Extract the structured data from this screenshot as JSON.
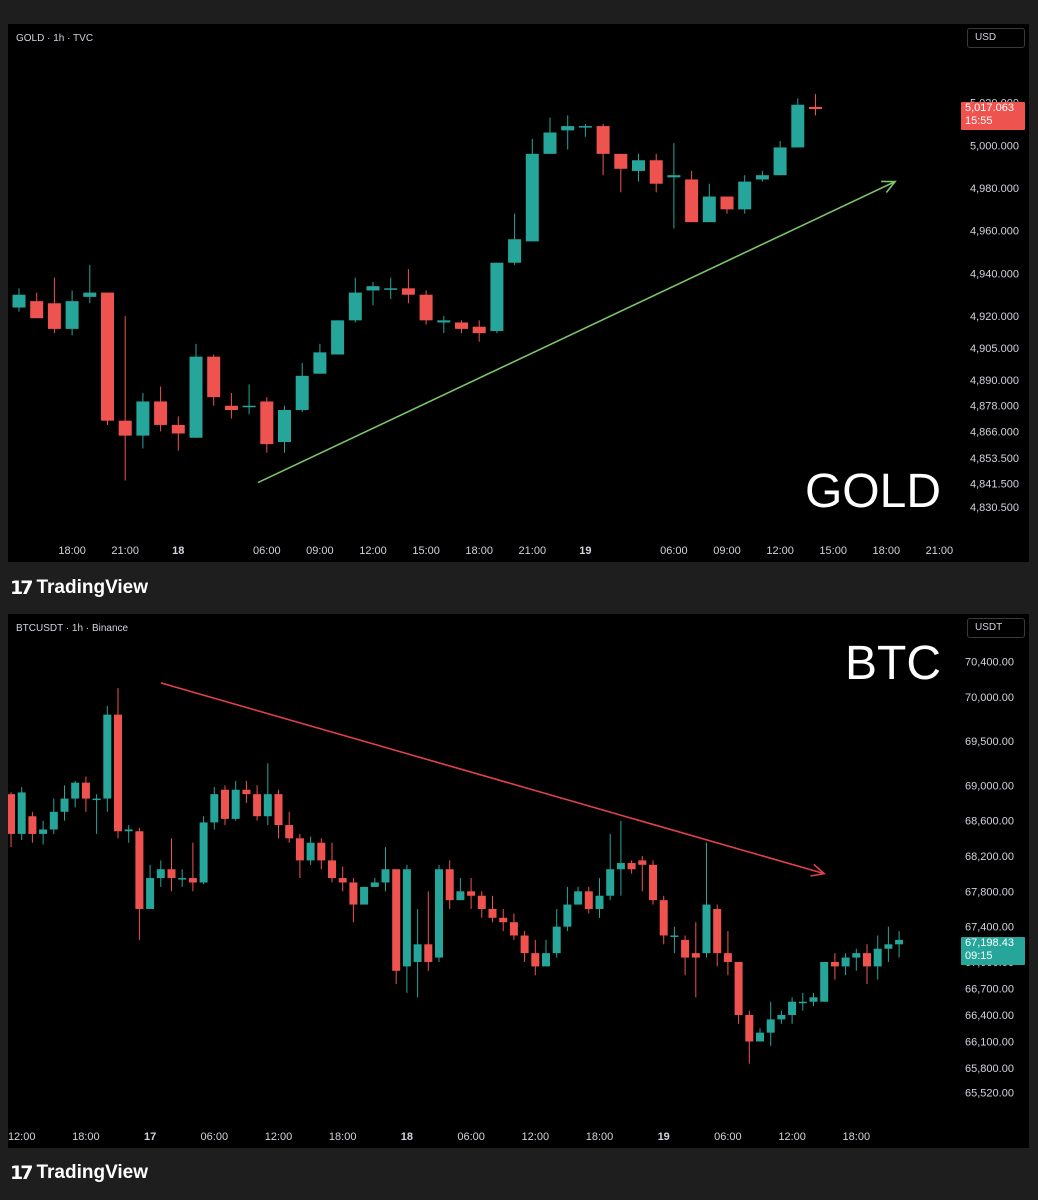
{
  "chart_data": [
    {
      "type": "candlestick",
      "symbol_label": "GOLD · 1h · TVC",
      "currency": "USD",
      "watermark": "GOLD",
      "current_price": "5,017.063",
      "countdown": "15:55",
      "ylim": [
        4824,
        5032
      ],
      "y_ticks": [
        "5,020.000",
        "5,000.000",
        "4,980.000",
        "4,960.000",
        "4,940.000",
        "4,920.000",
        "4,905.000",
        "4,890.000",
        "4,878.000",
        "4,866.000",
        "4,853.500",
        "4,841.500",
        "4,830.500"
      ],
      "x_ticks": [
        {
          "label": "18:00",
          "slot": 3
        },
        {
          "label": "21:00",
          "slot": 6
        },
        {
          "label": "18",
          "slot": 9,
          "bold": true
        },
        {
          "label": "06:00",
          "slot": 14
        },
        {
          "label": "09:00",
          "slot": 17
        },
        {
          "label": "12:00",
          "slot": 20
        },
        {
          "label": "15:00",
          "slot": 23
        },
        {
          "label": "18:00",
          "slot": 26
        },
        {
          "label": "21:00",
          "slot": 29
        },
        {
          "label": "19",
          "slot": 32,
          "bold": true
        },
        {
          "label": "06:00",
          "slot": 37
        },
        {
          "label": "09:00",
          "slot": 40
        },
        {
          "label": "12:00",
          "slot": 43
        },
        {
          "label": "15:00",
          "slot": 46
        },
        {
          "label": "18:00",
          "slot": 49
        },
        {
          "label": "21:00",
          "slot": 52
        }
      ],
      "trend_arrow": {
        "from": {
          "slot": 13.5,
          "price": 4842
        },
        "to": {
          "slot": 49.5,
          "price": 4983
        },
        "color": "#7cc46a"
      },
      "candles": [
        [
          4924,
          4930,
          4922,
          4933
        ],
        [
          4927,
          4919,
          4919,
          4931
        ],
        [
          4926,
          4914,
          4912,
          4938
        ],
        [
          4914,
          4927,
          4911,
          4932
        ],
        [
          4929,
          4931,
          4926,
          4944
        ],
        [
          4931,
          4871,
          4869,
          4931
        ],
        [
          4871,
          4864,
          4843,
          4920
        ],
        [
          4864,
          4880,
          4858,
          4884
        ],
        [
          4880,
          4869,
          4866,
          4887
        ],
        [
          4869,
          4865,
          4857,
          4873
        ],
        [
          4863,
          4901,
          4863,
          4907
        ],
        [
          4901,
          4882,
          4878,
          4902
        ],
        [
          4878,
          4876,
          4872,
          4884
        ],
        [
          4878,
          4878,
          4874,
          4888
        ],
        [
          4880,
          4860,
          4856,
          4882
        ],
        [
          4861,
          4876,
          4856,
          4878
        ],
        [
          4876,
          4892,
          4875,
          4898
        ],
        [
          4893,
          4903,
          4893,
          4907
        ],
        [
          4902,
          4918,
          4902,
          4918
        ],
        [
          4918,
          4931,
          4917,
          4938
        ],
        [
          4932,
          4934,
          4925,
          4936
        ],
        [
          4933,
          4933,
          4928,
          4938
        ],
        [
          4933,
          4930,
          4926,
          4942
        ],
        [
          4930,
          4918,
          4916,
          4932
        ],
        [
          4917,
          4918,
          4912,
          4920
        ],
        [
          4917,
          4914,
          4912,
          4918
        ],
        [
          4915,
          4912,
          4908,
          4918
        ],
        [
          4913,
          4945,
          4912,
          4945
        ],
        [
          4945,
          4956,
          4944,
          4968
        ],
        [
          4955,
          4996,
          4955,
          5003
        ],
        [
          4996,
          5006,
          4996,
          5013
        ],
        [
          5007,
          5009,
          4998,
          5014
        ],
        [
          5009,
          5009,
          5004,
          5010
        ],
        [
          5009,
          4996,
          4986,
          5010
        ],
        [
          4996,
          4989,
          4978,
          4996
        ],
        [
          4988,
          4993,
          4983,
          4996
        ],
        [
          4993,
          4982,
          4978,
          4996
        ],
        [
          4985,
          4986,
          4961,
          5001
        ],
        [
          4984,
          4964,
          4964,
          4988
        ],
        [
          4964,
          4976,
          4964,
          4982
        ],
        [
          4976,
          4970,
          4968,
          4976
        ],
        [
          4970,
          4983,
          4968,
          4986
        ],
        [
          4984,
          4986,
          4983,
          4988
        ],
        [
          4986,
          4999,
          4986,
          5002
        ],
        [
          4999,
          5019,
          4999,
          5022
        ],
        [
          5018,
          5017,
          5014,
          5024
        ]
      ]
    },
    {
      "type": "candlestick",
      "symbol_label": "BTCUSDT · 1h · Binance",
      "currency": "USDT",
      "watermark": "BTC",
      "current_price": "67,198.43",
      "countdown": "09:15",
      "ylim": [
        65460,
        70600
      ],
      "y_ticks": [
        "70,400.00",
        "70,000.00",
        "69,500.00",
        "69,000.00",
        "68,600.00",
        "68,200.00",
        "67,800.00",
        "67,400.00",
        "67,000.00",
        "66,700.00",
        "66,400.00",
        "66,100.00",
        "65,800.00",
        "65,520.00"
      ],
      "x_ticks": [
        {
          "label": "12:00",
          "slot": 1
        },
        {
          "label": "18:00",
          "slot": 7
        },
        {
          "label": "17",
          "slot": 13,
          "bold": true
        },
        {
          "label": "06:00",
          "slot": 19
        },
        {
          "label": "12:00",
          "slot": 25
        },
        {
          "label": "18:00",
          "slot": 31
        },
        {
          "label": "18",
          "slot": 37,
          "bold": true
        },
        {
          "label": "06:00",
          "slot": 43
        },
        {
          "label": "12:00",
          "slot": 49
        },
        {
          "label": "18:00",
          "slot": 55
        },
        {
          "label": "19",
          "slot": 61,
          "bold": true
        },
        {
          "label": "06:00",
          "slot": 67
        },
        {
          "label": "12:00",
          "slot": 73
        },
        {
          "label": "18:00",
          "slot": 79
        }
      ],
      "trend_arrow": {
        "from": {
          "slot": 14,
          "price": 70160
        },
        "to": {
          "slot": 76,
          "price": 68000
        },
        "color": "#e0414d"
      },
      "candles": [
        [
          68900,
          68450,
          68300,
          68920
        ],
        [
          68450,
          68920,
          68380,
          68980
        ],
        [
          68650,
          68450,
          68350,
          68700
        ],
        [
          68450,
          68500,
          68330,
          68600
        ],
        [
          68500,
          68700,
          68450,
          68850
        ],
        [
          68700,
          68850,
          68600,
          69000
        ],
        [
          68850,
          69030,
          68750,
          69050
        ],
        [
          69030,
          68850,
          68700,
          69100
        ],
        [
          68850,
          68850,
          68450,
          68900
        ],
        [
          68850,
          69800,
          68700,
          69900
        ],
        [
          69800,
          68480,
          68400,
          70100
        ],
        [
          68480,
          68500,
          68350,
          68550
        ],
        [
          68480,
          67600,
          67250,
          68520
        ],
        [
          67600,
          67950,
          67600,
          68100
        ],
        [
          67950,
          68050,
          67850,
          68150
        ],
        [
          68050,
          67950,
          67800,
          68400
        ],
        [
          67950,
          67950,
          67850,
          68050
        ],
        [
          67950,
          67900,
          67800,
          68350
        ],
        [
          67900,
          68580,
          67880,
          68650
        ],
        [
          68580,
          68900,
          68500,
          68980
        ],
        [
          68950,
          68620,
          68550,
          69000
        ],
        [
          68620,
          68950,
          68600,
          69050
        ],
        [
          68950,
          68900,
          68800,
          69050
        ],
        [
          68900,
          68650,
          68600,
          69000
        ],
        [
          68650,
          68900,
          68550,
          69250
        ],
        [
          68900,
          68550,
          68400,
          68950
        ],
        [
          68550,
          68400,
          68350,
          68700
        ],
        [
          68400,
          68150,
          67950,
          68450
        ],
        [
          68150,
          68350,
          68100,
          68420
        ],
        [
          68350,
          68150,
          68050,
          68400
        ],
        [
          68150,
          67950,
          67900,
          68350
        ],
        [
          67950,
          67900,
          67800,
          68080
        ],
        [
          67900,
          67650,
          67450,
          67950
        ],
        [
          67650,
          67850,
          67700,
          67850
        ],
        [
          67850,
          67900,
          67850,
          67950
        ],
        [
          67900,
          68050,
          67800,
          68300
        ],
        [
          68050,
          66900,
          66750,
          68050
        ],
        [
          66950,
          68050,
          66650,
          68100
        ],
        [
          67000,
          67200,
          66600,
          67600
        ],
        [
          67200,
          67000,
          66900,
          67800
        ],
        [
          67050,
          68050,
          67000,
          68100
        ],
        [
          68050,
          67700,
          67600,
          68150
        ],
        [
          67700,
          67800,
          67700,
          67950
        ],
        [
          67800,
          67750,
          67600,
          67950
        ],
        [
          67750,
          67600,
          67500,
          67800
        ],
        [
          67600,
          67500,
          67450,
          67750
        ],
        [
          67500,
          67450,
          67350,
          67600
        ],
        [
          67450,
          67300,
          67250,
          67550
        ],
        [
          67300,
          67100,
          67000,
          67350
        ],
        [
          67100,
          66950,
          66850,
          67250
        ],
        [
          66950,
          67100,
          67000,
          67250
        ],
        [
          67100,
          67400,
          67050,
          67600
        ],
        [
          67400,
          67650,
          67350,
          67850
        ],
        [
          67650,
          67800,
          67650,
          67850
        ],
        [
          67800,
          67600,
          67550,
          67850
        ],
        [
          67600,
          67750,
          67500,
          67950
        ],
        [
          67750,
          68050,
          67700,
          68450
        ],
        [
          68050,
          68120,
          67750,
          68600
        ],
        [
          68120,
          68050,
          68000,
          68150
        ],
        [
          68150,
          68100,
          67800,
          68200
        ],
        [
          68100,
          67700,
          67650,
          68150
        ],
        [
          67700,
          67300,
          67200,
          67750
        ],
        [
          67300,
          67300,
          67100,
          67400
        ],
        [
          67250,
          67050,
          66850,
          67300
        ],
        [
          67100,
          67050,
          66600,
          67450
        ],
        [
          67100,
          67650,
          67050,
          68350
        ],
        [
          67600,
          67100,
          66950,
          67650
        ],
        [
          67100,
          67000,
          66850,
          67350
        ],
        [
          67000,
          66400,
          66300,
          67000
        ],
        [
          66400,
          66100,
          65850,
          66450
        ],
        [
          66100,
          66200,
          66100,
          66250
        ],
        [
          66200,
          66350,
          66050,
          66550
        ],
        [
          66350,
          66400,
          66300,
          66450
        ],
        [
          66400,
          66550,
          66300,
          66600
        ],
        [
          66550,
          66550,
          66450,
          66650
        ],
        [
          66550,
          66600,
          66500,
          66650
        ],
        [
          66550,
          67000,
          66550,
          67000
        ],
        [
          67000,
          66950,
          66800,
          67100
        ],
        [
          66950,
          67050,
          66850,
          67100
        ],
        [
          67050,
          67100,
          66900,
          67150
        ],
        [
          67100,
          66950,
          66750,
          67200
        ],
        [
          66950,
          67150,
          66800,
          67300
        ],
        [
          67150,
          67200,
          67000,
          67400
        ],
        [
          67200,
          67250,
          67050,
          67350
        ]
      ]
    }
  ],
  "brand": {
    "logo_text": "TradingView",
    "logo_mark": "17"
  },
  "colors": {
    "up": "#26a69a",
    "down": "#ef5350",
    "bg": "#000000",
    "frame": "#1e1e1e"
  }
}
